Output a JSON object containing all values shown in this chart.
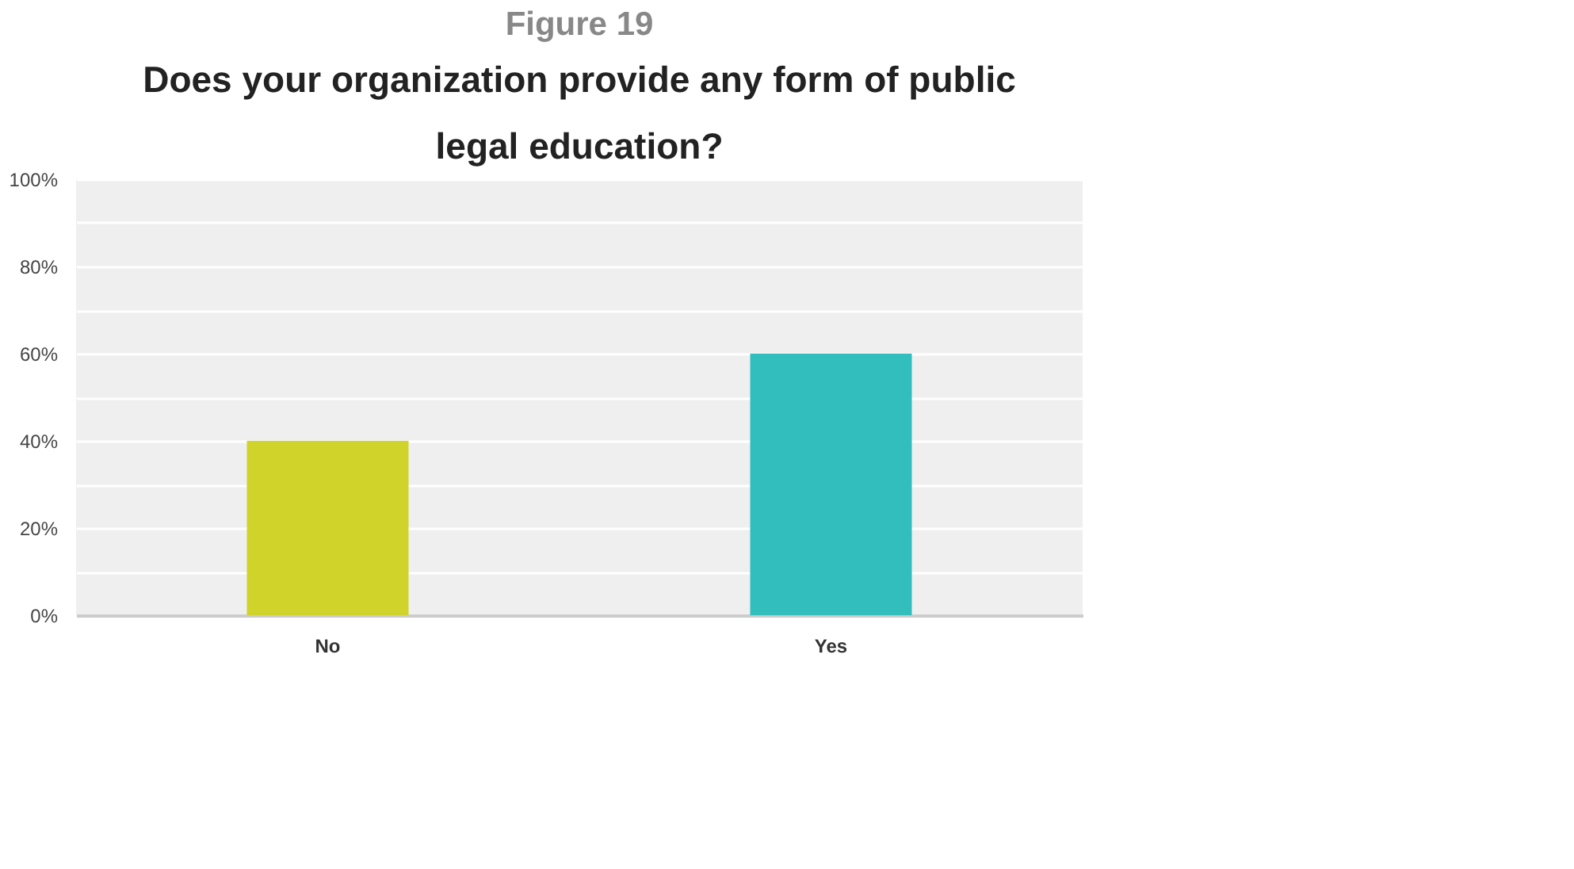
{
  "chart_data": {
    "type": "bar",
    "title": "Figure 19",
    "subtitle": "Does your organization provide any form of public legal education?",
    "categories": [
      "No",
      "Yes"
    ],
    "values": [
      40,
      60
    ],
    "colors": [
      "#d0d32a",
      "#33bebe"
    ],
    "ylim": [
      0,
      100
    ],
    "yticks": [
      {
        "value": 0,
        "label": "0%"
      },
      {
        "value": 10,
        "label": null
      },
      {
        "value": 20,
        "label": "20%"
      },
      {
        "value": 30,
        "label": null
      },
      {
        "value": 40,
        "label": "40%"
      },
      {
        "value": 50,
        "label": null
      },
      {
        "value": 60,
        "label": "60%"
      },
      {
        "value": 70,
        "label": null
      },
      {
        "value": 80,
        "label": "80%"
      },
      {
        "value": 90,
        "label": null
      },
      {
        "value": 100,
        "label": "100%"
      }
    ],
    "grid": "y"
  }
}
